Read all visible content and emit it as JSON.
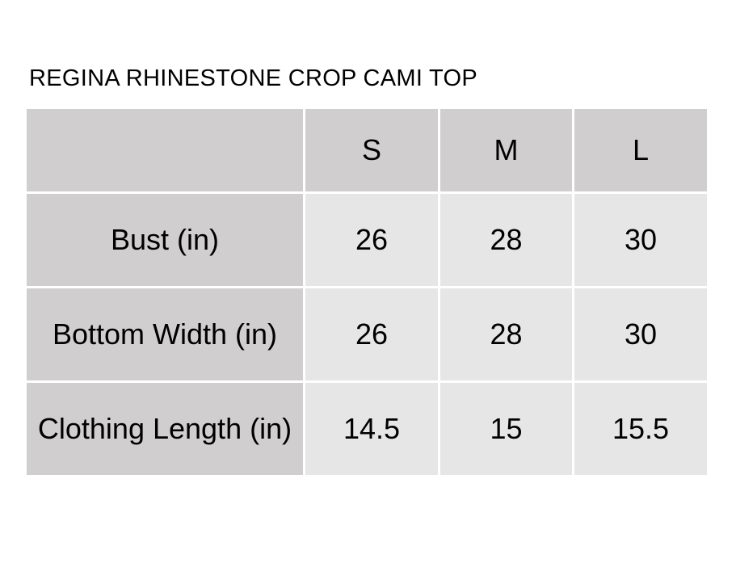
{
  "page": {
    "title": "REGINA RHINESTONE CROP CAMI TOP"
  },
  "colors": {
    "header_bg": "#d0cece",
    "label_column_bg": "#d0cece",
    "data_cell_bg": "#e7e6e6",
    "gutter": "#ffffff",
    "text": "#000000",
    "page_bg": "#ffffff"
  },
  "chart_data": {
    "type": "table",
    "title": "REGINA RHINESTONE CROP CAMI TOP",
    "columns": [
      "",
      "S",
      "M",
      "L"
    ],
    "rows": [
      {
        "label": "Bust (in)",
        "values": [
          "26",
          "28",
          "30"
        ]
      },
      {
        "label": "Bottom Width (in)",
        "values": [
          "26",
          "28",
          "30"
        ]
      },
      {
        "label": "Clothing Length (in)",
        "values": [
          "14.5",
          "15",
          "15.5"
        ]
      }
    ],
    "layout": {
      "grid": "off",
      "legend": "none",
      "header_position": "top",
      "label_column_position": "left"
    }
  }
}
